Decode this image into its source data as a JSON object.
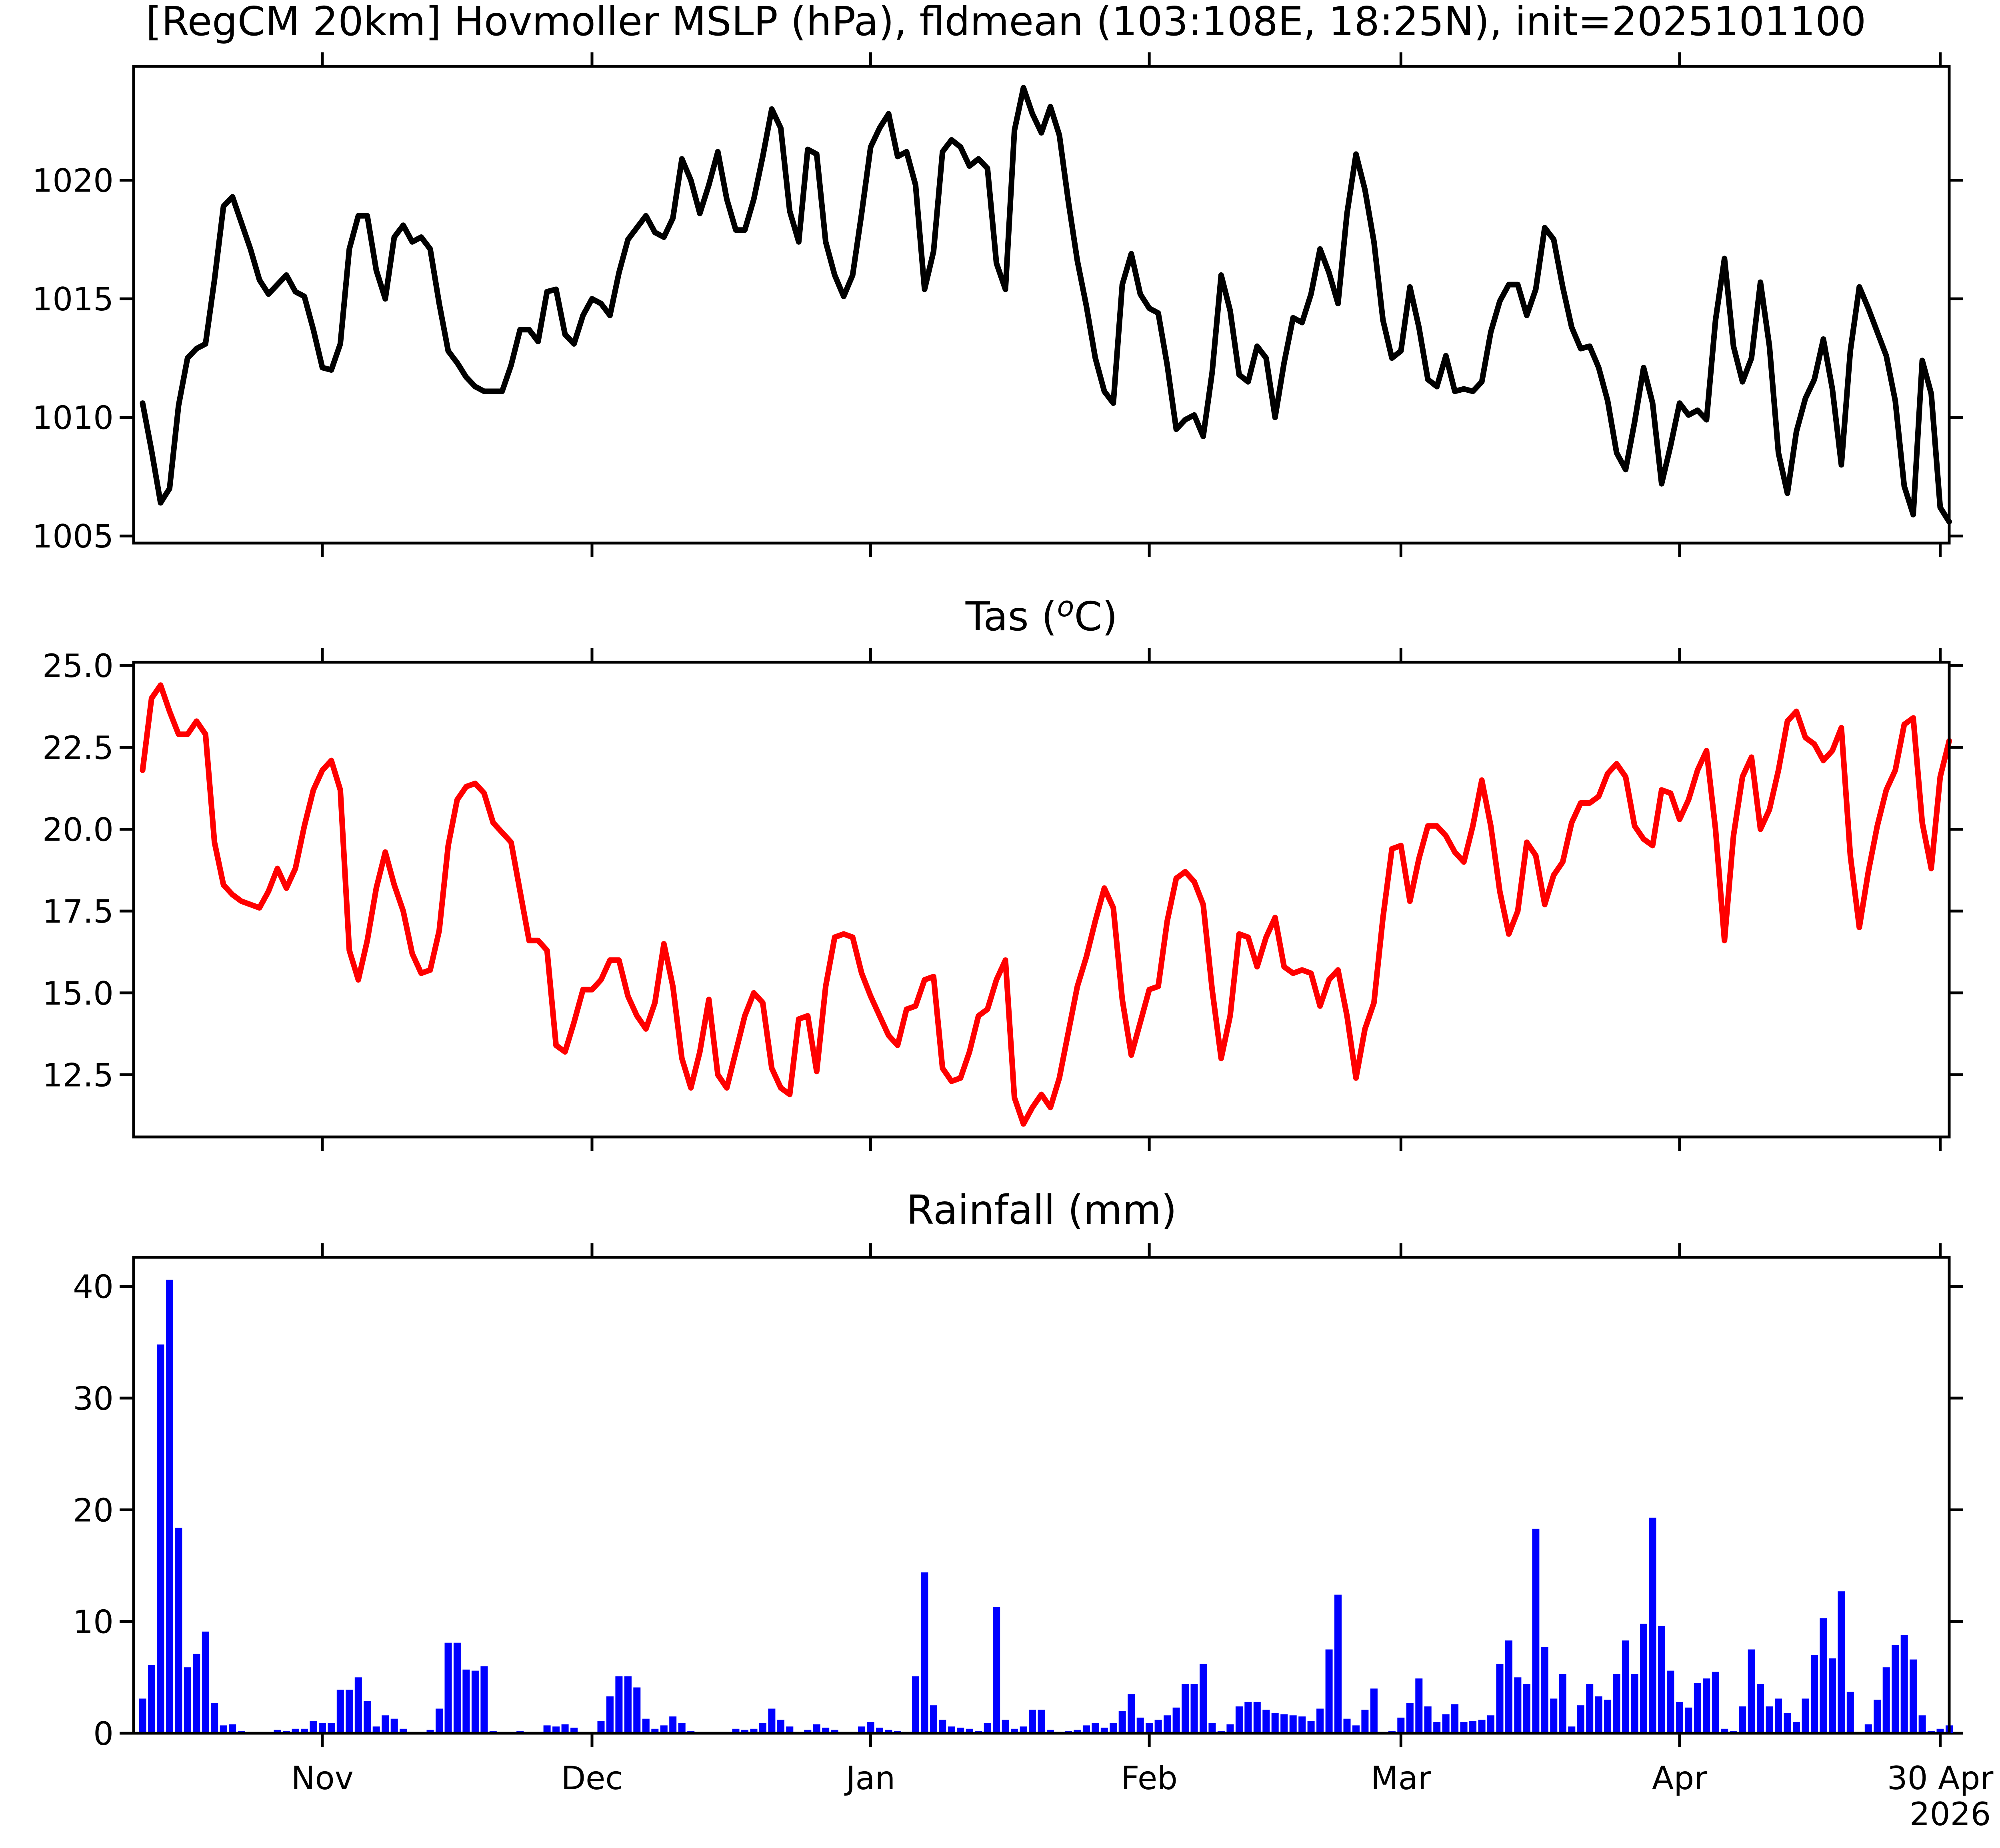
{
  "figure": {
    "suptitle": "[RegCM 20km] Hovmoller MSLP (hPa), fldmean (103:108E, 18:25N), init=2025101100"
  },
  "colors": {
    "mslp_line": "#000000",
    "tas_line": "#ff0000",
    "rain_bars": "#0000ff"
  },
  "chart_data": [
    {
      "type": "line",
      "title": "",
      "xlabel": "",
      "ylabel": "",
      "x_start": "2025-10-12",
      "x_step_days": 1,
      "xlim": [
        "2025-10-11",
        "2026-05-01"
      ],
      "ylim": [
        1004.7,
        1024.8
      ],
      "yticks": [
        "1005",
        "1010",
        "1015",
        "1020"
      ],
      "grid": false,
      "series": [
        {
          "values": [
            1010.6,
            1008.6,
            1006.4,
            1007.0,
            1010.5,
            1012.5,
            1012.9,
            1013.1,
            1015.8,
            1018.9,
            1019.3,
            1018.2,
            1017.1,
            1015.8,
            1015.2,
            1015.6,
            1016.0,
            1015.3,
            1015.1,
            1013.7,
            1012.1,
            1012.0,
            1013.1,
            1017.1,
            1018.5,
            1018.5,
            1016.2,
            1015.0,
            1017.6,
            1018.1,
            1017.4,
            1017.6,
            1017.1,
            1014.8,
            1012.8,
            1012.3,
            1011.7,
            1011.3,
            1011.1,
            1011.1,
            1011.1,
            1012.2,
            1013.7,
            1013.7,
            1013.2,
            1015.3,
            1015.4,
            1013.5,
            1013.1,
            1014.3,
            1015.0,
            1014.8,
            1014.3,
            1016.1,
            1017.5,
            1018.0,
            1018.5,
            1017.8,
            1017.6,
            1018.4,
            1020.9,
            1020.0,
            1018.6,
            1019.8,
            1021.2,
            1019.2,
            1017.9,
            1017.9,
            1019.2,
            1021.0,
            1023.0,
            1022.2,
            1018.7,
            1017.4,
            1021.3,
            1021.1,
            1017.4,
            1016.0,
            1015.1,
            1016.0,
            1018.6,
            1021.4,
            1022.2,
            1022.8,
            1021.0,
            1021.2,
            1019.8,
            1015.4,
            1017.0,
            1021.2,
            1021.7,
            1021.4,
            1020.6,
            1020.9,
            1020.5,
            1016.5,
            1015.4,
            1022.1,
            1023.9,
            1022.8,
            1022.0,
            1023.1,
            1021.9,
            1019.1,
            1016.6,
            1014.7,
            1012.5,
            1011.1,
            1010.6,
            1015.6,
            1016.9,
            1015.2,
            1014.6,
            1014.4,
            1012.2,
            1009.5,
            1009.9,
            1010.1,
            1009.2,
            1011.9,
            1016.0,
            1014.5,
            1011.8,
            1011.5,
            1013.0,
            1012.5,
            1010.0,
            1012.3,
            1014.2,
            1014.0,
            1015.2,
            1017.1,
            1016.1,
            1014.8,
            1018.6,
            1021.1,
            1019.6,
            1017.4,
            1014.1,
            1012.5,
            1012.8,
            1015.5,
            1013.8,
            1011.6,
            1011.3,
            1012.6,
            1011.1,
            1011.2,
            1011.1,
            1011.5,
            1013.6,
            1014.9,
            1015.6,
            1015.6,
            1014.3,
            1015.4,
            1018.0,
            1017.5,
            1015.5,
            1013.8,
            1012.9,
            1013.0,
            1012.1,
            1010.7,
            1008.5,
            1007.8,
            1009.8,
            1012.1,
            1010.6,
            1007.2,
            1008.8,
            1010.6,
            1010.1,
            1010.3,
            1009.9,
            1014.1,
            1016.7,
            1013.0,
            1011.5,
            1012.5,
            1015.7,
            1013.0,
            1008.5,
            1006.8,
            1009.4,
            1010.8,
            1011.6,
            1013.3,
            1011.2,
            1008.0,
            1012.8,
            1015.5,
            1014.6,
            1013.6,
            1012.6,
            1010.7,
            1007.1,
            1005.9,
            1012.4,
            1011.0,
            1006.2,
            1005.6
          ]
        }
      ]
    },
    {
      "type": "line",
      "title": "Tas (°C)",
      "xlabel": "",
      "ylabel": "",
      "x_start": "2025-10-12",
      "x_step_days": 1,
      "xlim": [
        "2025-10-11",
        "2026-05-01"
      ],
      "ylim": [
        10.6,
        25.1
      ],
      "yticks": [
        "12.5",
        "15.0",
        "17.5",
        "20.0",
        "22.5",
        "25.0"
      ],
      "grid": false,
      "series": [
        {
          "values": [
            21.8,
            24.0,
            24.4,
            23.6,
            22.9,
            22.9,
            23.3,
            22.9,
            19.6,
            18.3,
            18.0,
            17.8,
            17.7,
            17.6,
            18.1,
            18.8,
            18.2,
            18.8,
            20.1,
            21.2,
            21.8,
            22.1,
            21.2,
            16.3,
            15.4,
            16.6,
            18.2,
            19.3,
            18.3,
            17.5,
            16.2,
            15.6,
            15.7,
            16.9,
            19.5,
            20.9,
            21.3,
            21.4,
            21.1,
            20.2,
            19.9,
            19.6,
            18.1,
            16.6,
            16.6,
            16.3,
            13.4,
            13.2,
            14.1,
            15.1,
            15.1,
            15.4,
            16.0,
            16.0,
            14.9,
            14.3,
            13.9,
            14.7,
            16.5,
            15.2,
            13.0,
            12.1,
            13.2,
            14.8,
            12.5,
            12.1,
            13.2,
            14.3,
            15.0,
            14.7,
            12.7,
            12.1,
            11.9,
            14.2,
            14.3,
            12.6,
            15.2,
            16.7,
            16.8,
            16.7,
            15.6,
            14.9,
            14.3,
            13.7,
            13.4,
            14.5,
            14.6,
            15.4,
            15.5,
            12.7,
            12.3,
            12.4,
            13.2,
            14.3,
            14.5,
            15.4,
            16.0,
            11.8,
            11.0,
            11.5,
            11.9,
            11.5,
            12.4,
            13.8,
            15.2,
            16.1,
            17.2,
            18.2,
            17.6,
            14.8,
            13.1,
            14.1,
            15.1,
            15.2,
            17.2,
            18.5,
            18.7,
            18.4,
            17.7,
            15.1,
            13.0,
            14.3,
            16.8,
            16.7,
            15.8,
            16.7,
            17.3,
            15.8,
            15.6,
            15.7,
            15.6,
            14.6,
            15.4,
            15.7,
            14.3,
            12.4,
            13.9,
            14.7,
            17.3,
            19.4,
            19.5,
            17.8,
            19.1,
            20.1,
            20.1,
            19.8,
            19.3,
            19.0,
            20.1,
            21.5,
            20.1,
            18.1,
            16.8,
            17.5,
            19.6,
            19.2,
            17.7,
            18.6,
            19.0,
            20.2,
            20.8,
            20.8,
            21.0,
            21.7,
            22.0,
            21.6,
            20.1,
            19.7,
            19.5,
            21.2,
            21.1,
            20.3,
            20.9,
            21.8,
            22.4,
            20.0,
            16.6,
            19.8,
            21.6,
            22.2,
            20.0,
            20.6,
            21.8,
            23.3,
            23.6,
            22.8,
            22.6,
            22.1,
            22.4,
            23.1,
            19.2,
            17.0,
            18.7,
            20.1,
            21.2,
            21.8,
            23.2,
            23.4,
            20.2,
            18.8,
            21.6,
            22.7
          ]
        }
      ]
    },
    {
      "type": "bar",
      "title": "Rainfall (mm)",
      "xlabel": "",
      "ylabel": "",
      "x_start": "2025-10-12",
      "x_step_days": 1,
      "xlim": [
        "2025-10-11",
        "2026-05-01"
      ],
      "ylim": [
        0,
        42.6
      ],
      "yticks": [
        "0",
        "10",
        "20",
        "30",
        "40"
      ],
      "grid": false,
      "series": [
        {
          "values": [
            3.1,
            6.1,
            34.8,
            40.6,
            18.4,
            5.9,
            7.1,
            9.1,
            2.7,
            0.7,
            0.8,
            0.2,
            0.1,
            0.1,
            0.0,
            0.3,
            0.2,
            0.4,
            0.4,
            1.1,
            0.9,
            0.9,
            3.9,
            3.9,
            5.0,
            2.9,
            0.6,
            1.6,
            1.3,
            0.4,
            0.0,
            0.1,
            0.3,
            2.2,
            8.1,
            8.1,
            5.7,
            5.6,
            6.0,
            0.2,
            0.1,
            0.1,
            0.2,
            0.1,
            0.1,
            0.7,
            0.6,
            0.8,
            0.5,
            0.1,
            0.0,
            1.1,
            3.3,
            5.1,
            5.1,
            4.1,
            1.3,
            0.4,
            0.7,
            1.5,
            0.9,
            0.2,
            0.0,
            0.1,
            0.0,
            0.0,
            0.4,
            0.3,
            0.4,
            0.9,
            2.2,
            1.2,
            0.6,
            0.0,
            0.3,
            0.8,
            0.5,
            0.3,
            0.1,
            0.1,
            0.6,
            1.0,
            0.5,
            0.3,
            0.2,
            0.0,
            5.1,
            14.4,
            2.5,
            1.2,
            0.6,
            0.5,
            0.4,
            0.2,
            0.9,
            11.3,
            1.2,
            0.4,
            0.6,
            2.1,
            2.1,
            0.3,
            0.0,
            0.2,
            0.3,
            0.7,
            0.9,
            0.5,
            0.9,
            2.0,
            3.5,
            1.4,
            0.9,
            1.2,
            1.6,
            2.3,
            4.4,
            4.4,
            6.2,
            0.9,
            0.2,
            0.8,
            2.4,
            2.8,
            2.8,
            2.1,
            1.8,
            1.7,
            1.6,
            1.5,
            1.1,
            2.2,
            7.5,
            12.4,
            1.3,
            0.7,
            2.1,
            4.0,
            0.0,
            0.2,
            1.4,
            2.7,
            4.9,
            2.4,
            1.0,
            1.7,
            2.6,
            1.0,
            1.1,
            1.2,
            1.6,
            6.2,
            8.3,
            5.0,
            4.4,
            18.3,
            7.7,
            3.1,
            5.3,
            0.6,
            2.5,
            4.4,
            3.3,
            3.0,
            5.3,
            8.3,
            5.3,
            9.8,
            19.3,
            9.6,
            5.6,
            2.8,
            2.3,
            4.5,
            4.9,
            5.5,
            0.4,
            0.2,
            2.4,
            7.5,
            4.4,
            2.4,
            3.1,
            1.8,
            1.0,
            3.1,
            7.0,
            10.3,
            6.7,
            12.7,
            3.7,
            0.0,
            0.8,
            3.0,
            5.9,
            7.9,
            8.8,
            6.6,
            1.6,
            0.2,
            0.4,
            0.7
          ]
        }
      ]
    }
  ],
  "xaxis": {
    "ticks": [
      {
        "date": "2025-11-01",
        "label": "Nov",
        "label2": ""
      },
      {
        "date": "2025-12-01",
        "label": "Dec",
        "label2": ""
      },
      {
        "date": "2026-01-01",
        "label": "Jan",
        "label2": ""
      },
      {
        "date": "2026-02-01",
        "label": "Feb",
        "label2": ""
      },
      {
        "date": "2026-03-01",
        "label": "Mar",
        "label2": ""
      },
      {
        "date": "2026-04-01",
        "label": "Apr",
        "label2": ""
      },
      {
        "date": "2026-04-30",
        "label": "30 Apr",
        "label2": "2026"
      }
    ]
  }
}
